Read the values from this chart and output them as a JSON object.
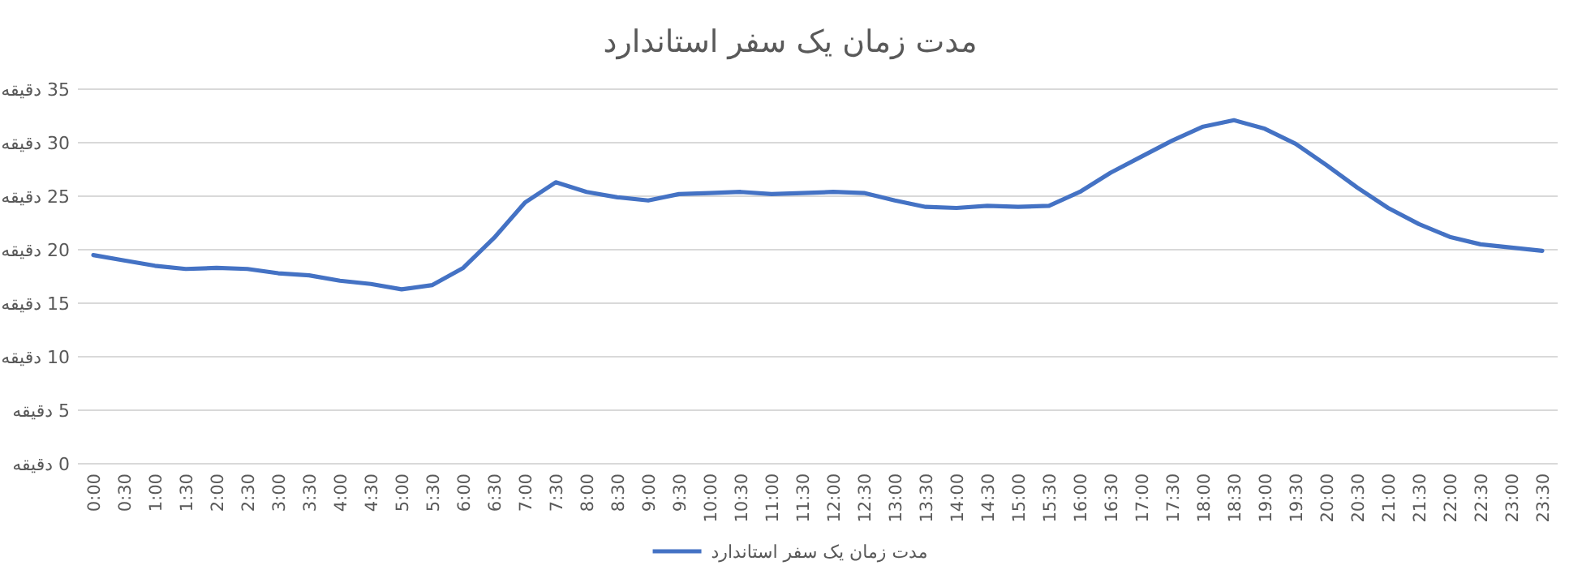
{
  "chart_data": {
    "type": "line",
    "title": "مدت زمان یک سفر استاندارد",
    "categories": [
      "0:00",
      "0:30",
      "1:00",
      "1:30",
      "2:00",
      "2:30",
      "3:00",
      "3:30",
      "4:00",
      "4:30",
      "5:00",
      "5:30",
      "6:00",
      "6:30",
      "7:00",
      "7:30",
      "8:00",
      "8:30",
      "9:00",
      "9:30",
      "10:00",
      "10:30",
      "11:00",
      "11:30",
      "12:00",
      "12:30",
      "13:00",
      "13:30",
      "14:00",
      "14:30",
      "15:00",
      "15:30",
      "16:00",
      "16:30",
      "17:00",
      "17:30",
      "18:00",
      "18:30",
      "19:00",
      "19:30",
      "20:00",
      "20:30",
      "21:00",
      "21:30",
      "22:00",
      "22:30",
      "23:00",
      "23:30"
    ],
    "series": [
      {
        "name": "مدت زمان یک سفر استاندارد",
        "color": "#4472c4",
        "values": [
          19.5,
          19.0,
          18.5,
          18.2,
          18.3,
          18.2,
          17.8,
          17.6,
          17.1,
          16.8,
          16.3,
          16.7,
          18.3,
          21.1,
          24.4,
          26.3,
          25.4,
          24.9,
          24.6,
          25.2,
          25.3,
          25.4,
          25.2,
          25.3,
          25.4,
          25.3,
          24.6,
          24.0,
          23.9,
          24.1,
          24.0,
          24.1,
          25.4,
          27.2,
          28.7,
          30.2,
          31.5,
          32.1,
          31.3,
          29.9,
          27.9,
          25.8,
          23.9,
          22.4,
          21.2,
          20.5,
          20.2,
          19.9
        ]
      }
    ],
    "ylim": [
      0,
      35
    ],
    "yticks": [
      {
        "value": 0,
        "label": "0 دقیقه"
      },
      {
        "value": 5,
        "label": "5 دقیقه"
      },
      {
        "value": 10,
        "label": "10 دقیقه"
      },
      {
        "value": 15,
        "label": "15 دقیقه"
      },
      {
        "value": 20,
        "label": "20 دقیقه"
      },
      {
        "value": 25,
        "label": "25 دقیقه"
      },
      {
        "value": 30,
        "label": "30 دقیقه"
      },
      {
        "value": 35,
        "label": "35 دقیقه"
      }
    ],
    "grid": "y",
    "legend": "bottom",
    "marker": "none",
    "line_style": "solid"
  }
}
